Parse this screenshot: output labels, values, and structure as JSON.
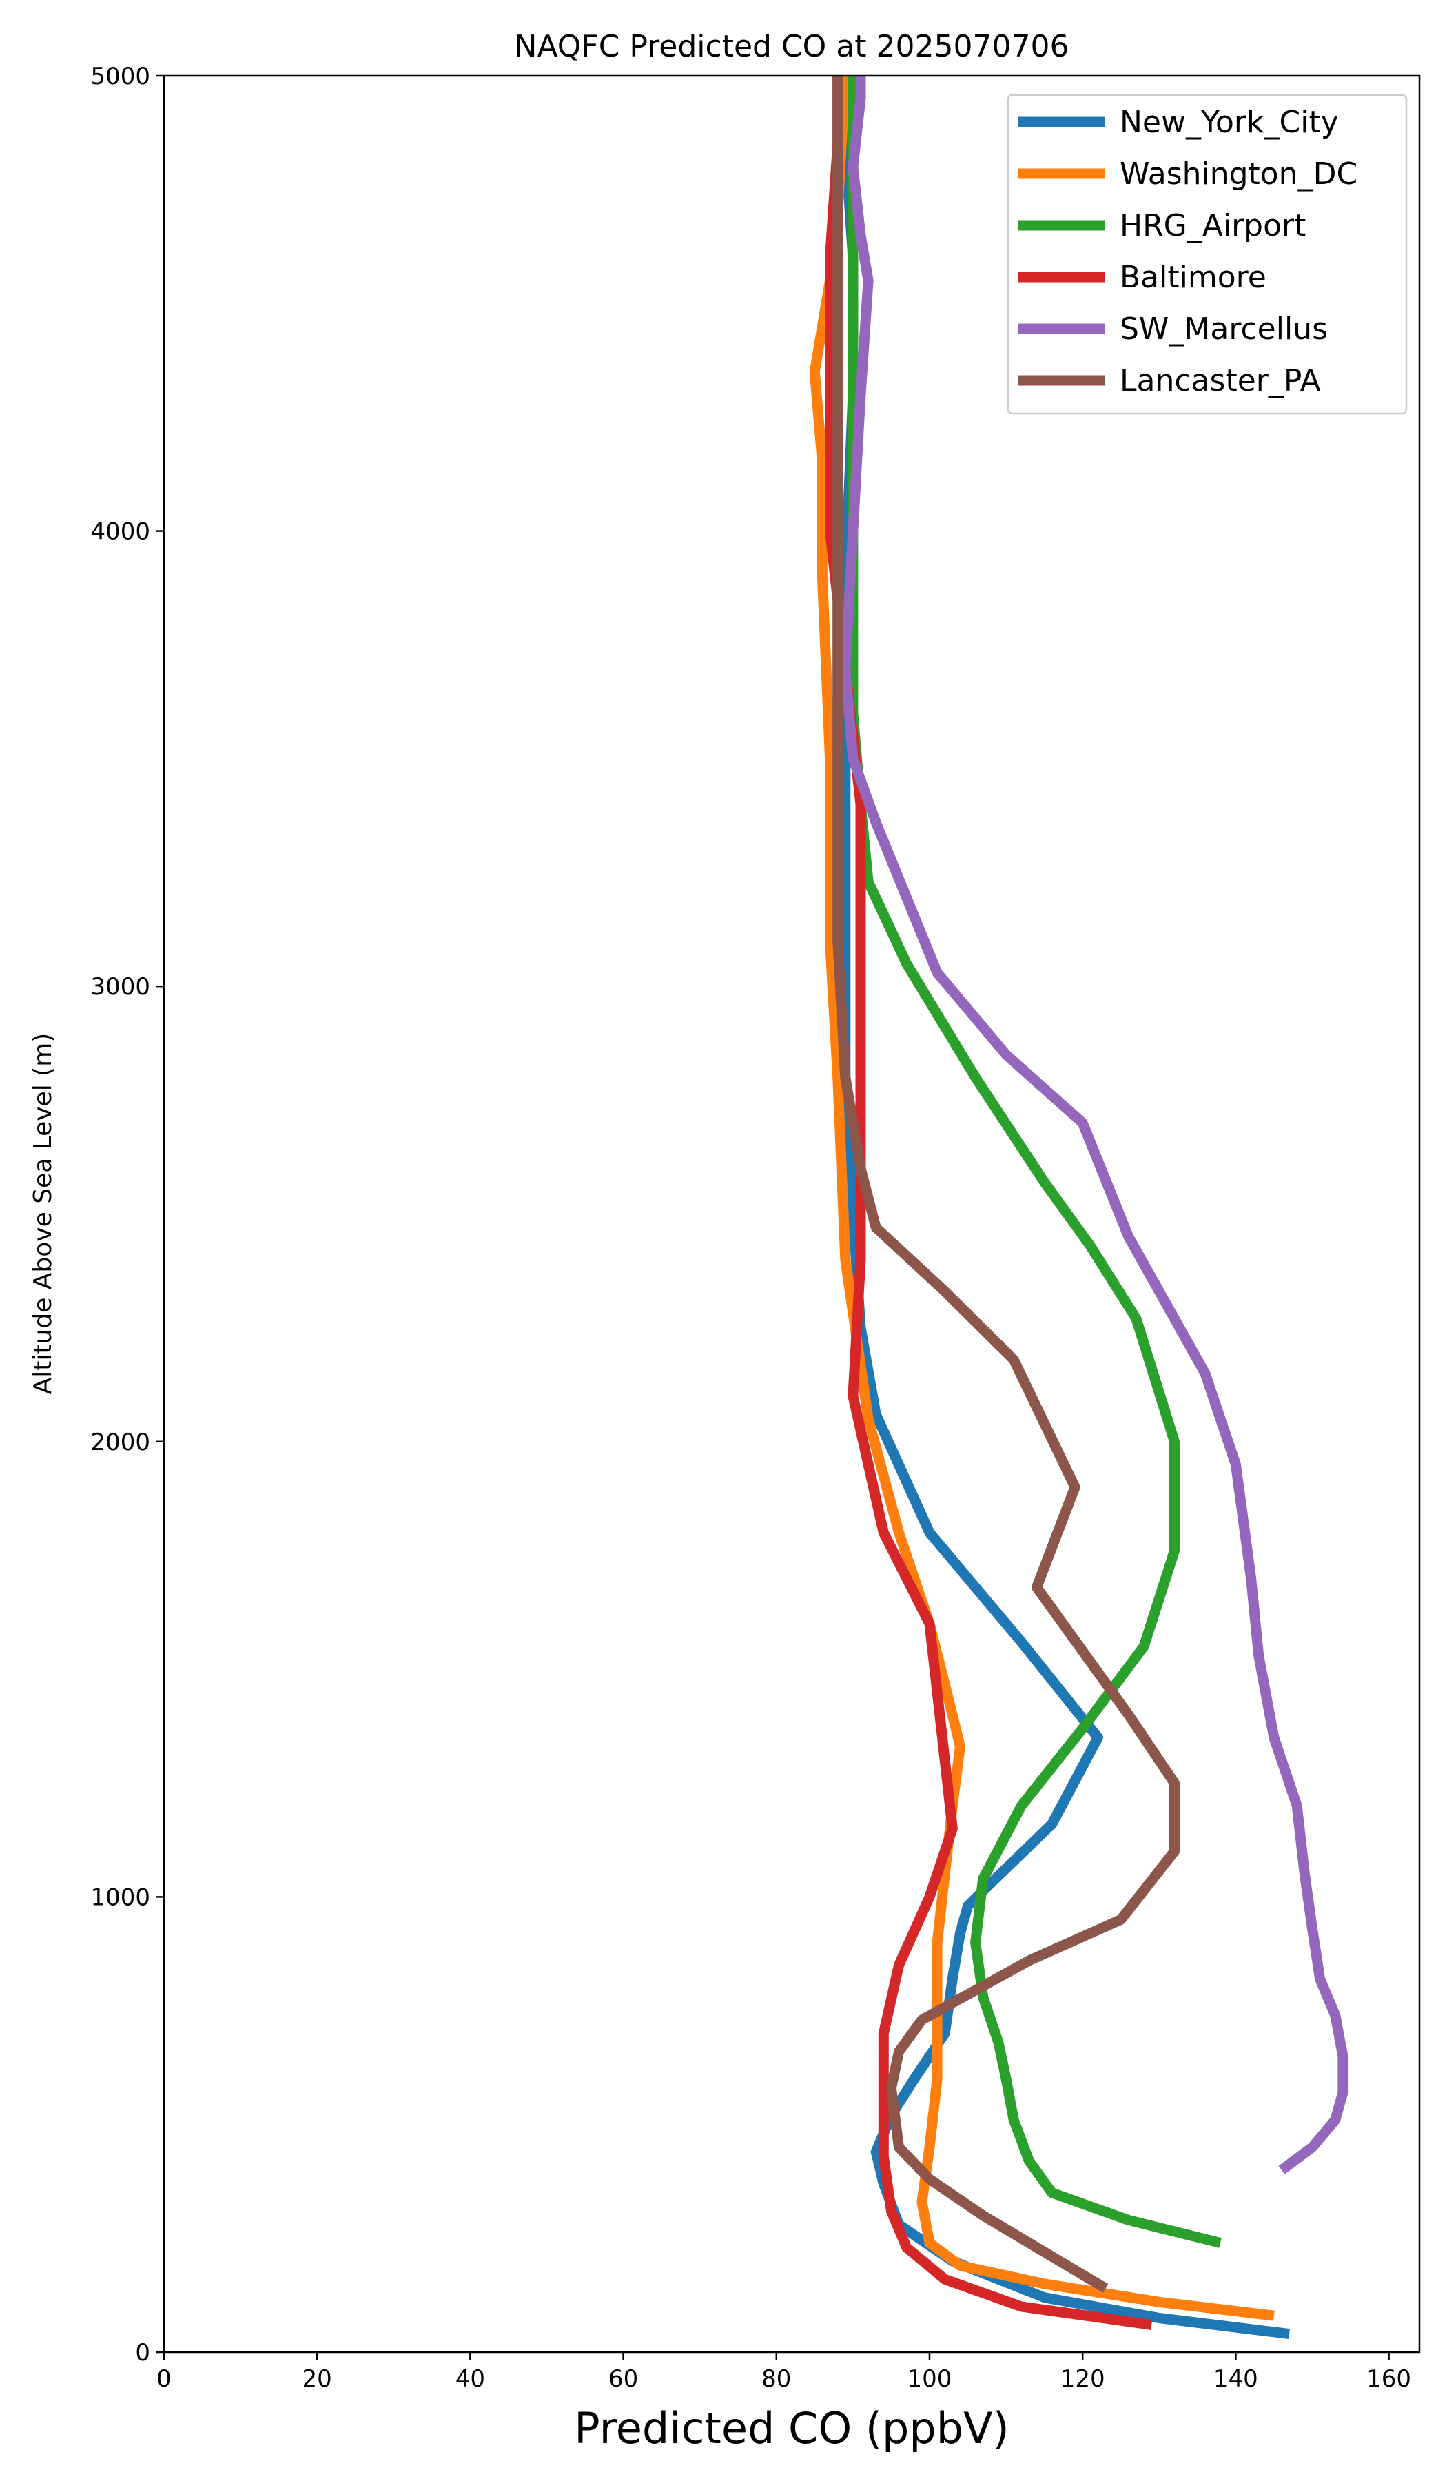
{
  "chart_data": {
    "type": "line",
    "title": "NAQFC Predicted CO at 2025070706",
    "xlabel": "Predicted CO (ppbV)",
    "ylabel": "Altitude Above Sea Level (m)",
    "xlim": [
      0,
      164
    ],
    "ylim": [
      0,
      5000
    ],
    "x_ticks": [
      "0",
      "20",
      "40",
      "60",
      "80",
      "100",
      "120",
      "140",
      "160"
    ],
    "y_ticks": [
      "0",
      "1000",
      "2000",
      "3000",
      "4000",
      "5000"
    ],
    "grid": false,
    "legend_position": "top-right",
    "series": [
      {
        "name": "New_York_City",
        "color": "#1f77b4",
        "x": [
          147,
          130,
          115,
          103,
          96,
          94,
          93,
          95,
          98,
          102,
          103,
          104,
          105,
          108,
          116,
          122,
          112,
          100,
          93,
          91,
          90,
          89,
          89,
          89,
          89,
          90,
          90,
          89,
          88
        ],
        "y": [
          40,
          75,
          120,
          200,
          280,
          370,
          440,
          520,
          600,
          700,
          820,
          920,
          980,
          1030,
          1160,
          1350,
          1560,
          1800,
          2060,
          2250,
          2500,
          2800,
          3100,
          3500,
          3900,
          4300,
          4600,
          4850,
          5000
        ]
      },
      {
        "name": "Washington_DC",
        "color": "#ff7f0e",
        "x": [
          145,
          130,
          115,
          104,
          100,
          99,
          100,
          101,
          101,
          101,
          102,
          103,
          104,
          103,
          100,
          96,
          92,
          89,
          88,
          87,
          87,
          86,
          86,
          85,
          86,
          87,
          88,
          89
        ],
        "y": [
          80,
          110,
          150,
          190,
          240,
          330,
          450,
          600,
          750,
          900,
          1050,
          1200,
          1330,
          1400,
          1600,
          1800,
          2050,
          2400,
          2800,
          3100,
          3500,
          3900,
          4150,
          4350,
          4450,
          4550,
          4700,
          5000
        ]
      },
      {
        "name": "HRG_Airport",
        "color": "#2ca02c",
        "x": [
          138,
          126,
          116,
          113,
          111,
          110,
          109,
          107,
          106,
          107,
          112,
          120,
          128,
          132,
          132,
          127,
          121,
          115,
          106,
          97,
          92,
          91,
          90,
          90,
          90,
          90,
          90,
          90
        ],
        "y": [
          240,
          290,
          350,
          420,
          510,
          600,
          680,
          780,
          900,
          1040,
          1200,
          1370,
          1550,
          1760,
          2000,
          2270,
          2430,
          2570,
          2800,
          3050,
          3230,
          3400,
          3600,
          3800,
          4000,
          4300,
          4600,
          5000
        ]
      },
      {
        "name": "Baltimore",
        "color": "#d62728",
        "x": [
          129,
          112,
          102,
          97,
          95,
          94,
          94,
          94,
          96,
          100,
          103,
          102,
          100,
          94,
          90,
          91,
          91,
          91,
          91,
          91,
          91,
          89,
          87,
          87,
          87,
          88,
          88
        ],
        "y": [
          60,
          100,
          160,
          230,
          310,
          430,
          580,
          700,
          850,
          1000,
          1150,
          1300,
          1600,
          1800,
          2100,
          2400,
          2700,
          2900,
          3050,
          3150,
          3400,
          3700,
          4000,
          4300,
          4600,
          4850,
          5000
        ]
      },
      {
        "name": "SW_Marcellus",
        "color": "#9467bd",
        "x": [
          146,
          150,
          153,
          154,
          154,
          153,
          151,
          150,
          149,
          148,
          145,
          143,
          142,
          140,
          136,
          131,
          126,
          120,
          110,
          101,
          93,
          90,
          89,
          90,
          91,
          92,
          91,
          90,
          91,
          91
        ],
        "y": [
          400,
          450,
          510,
          570,
          650,
          740,
          820,
          930,
          1050,
          1200,
          1350,
          1530,
          1700,
          1950,
          2150,
          2300,
          2450,
          2700,
          2850,
          3030,
          3360,
          3500,
          3700,
          4000,
          4300,
          4550,
          4650,
          4800,
          4950,
          5000
        ]
      },
      {
        "name": "Lancaster_PA",
        "color": "#8c564b",
        "x": [
          123,
          116,
          107,
          100,
          96,
          95,
          96,
          99,
          113,
          125,
          132,
          132,
          126,
          114,
          119,
          111,
          102,
          93,
          91,
          89,
          88,
          88,
          88,
          88,
          88,
          88,
          88,
          88
        ],
        "y": [
          140,
          210,
          300,
          380,
          450,
          580,
          660,
          730,
          860,
          950,
          1100,
          1250,
          1400,
          1680,
          1900,
          2180,
          2330,
          2470,
          2600,
          2800,
          3100,
          3400,
          3700,
          4000,
          4300,
          4600,
          4850,
          5000
        ]
      }
    ]
  }
}
